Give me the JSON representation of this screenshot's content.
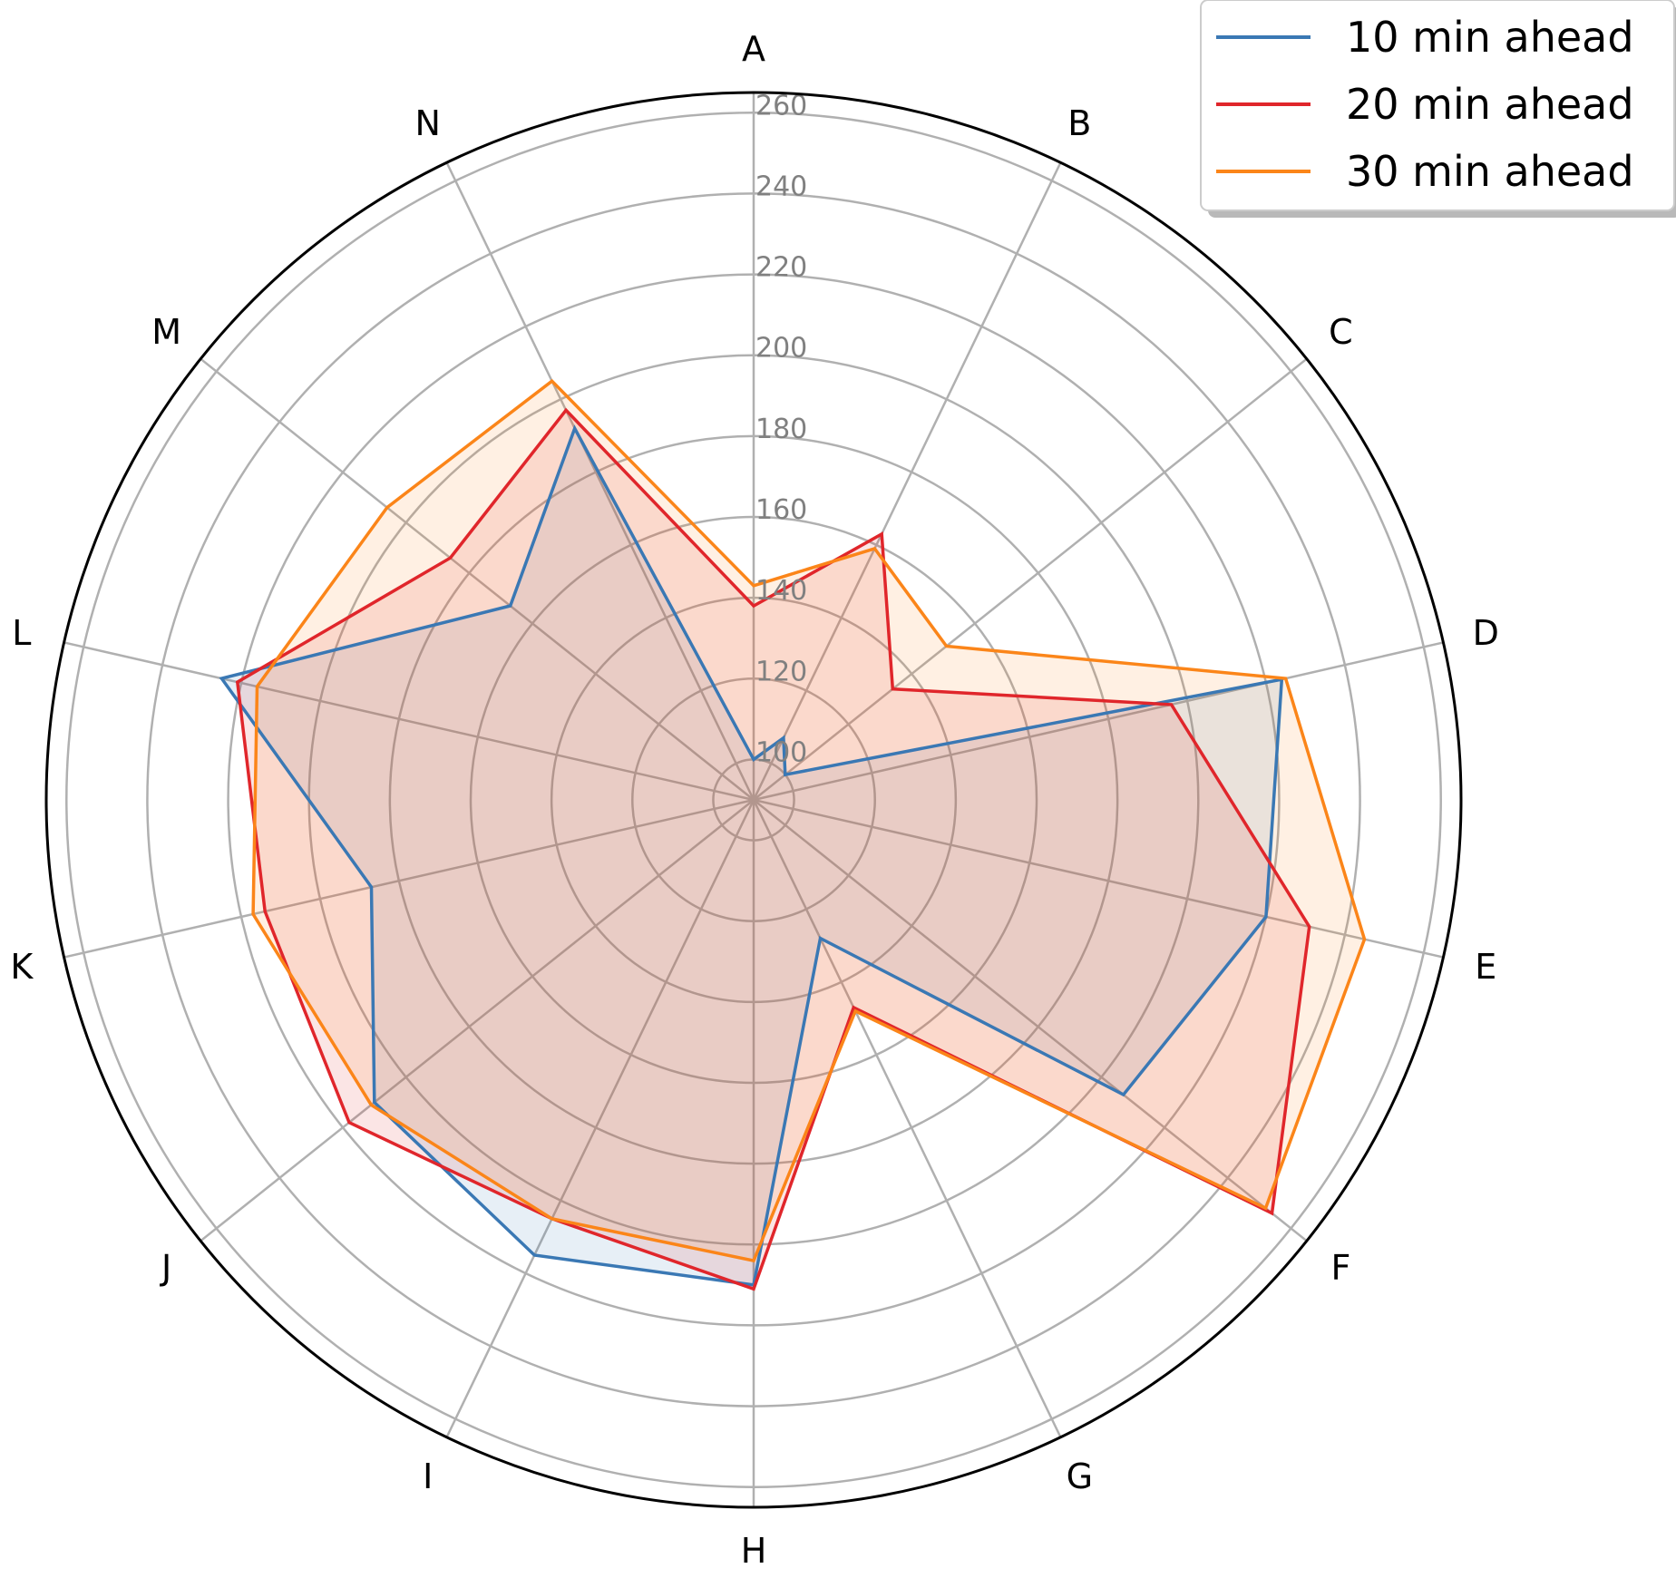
{
  "chart_data": {
    "type": "radar",
    "categories": [
      "A",
      "B",
      "C",
      "D",
      "E",
      "F",
      "G",
      "H",
      "I",
      "J",
      "K",
      "L",
      "M",
      "N"
    ],
    "radial_ticks": [
      "100",
      "120",
      "140",
      "160",
      "180",
      "200",
      "220",
      "240",
      "260"
    ],
    "rlim": [
      90,
      265
    ],
    "grid": true,
    "legend_position": "top-right",
    "series": [
      {
        "name": "10 min ahead",
        "color": "#3a78b4",
        "values": [
          100,
          107,
          100,
          224,
          220,
          207,
          128,
          210,
          215,
          210,
          187,
          225,
          167,
          192
        ]
      },
      {
        "name": "20 min ahead",
        "color": "#e0262b",
        "values": [
          138,
          163,
          134,
          196,
          231,
          254,
          147,
          211,
          205,
          218,
          214,
          221,
          186,
          197
        ]
      },
      {
        "name": "30 min ahead",
        "color": "#fb8519",
        "values": [
          143,
          159,
          151,
          225,
          245,
          252,
          148,
          204,
          205,
          211,
          217,
          216,
          206,
          205
        ]
      }
    ]
  }
}
